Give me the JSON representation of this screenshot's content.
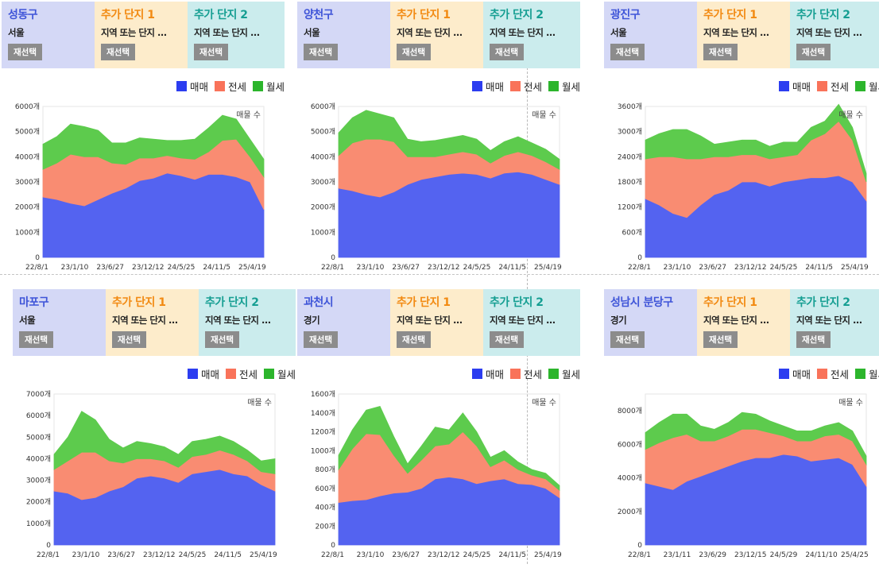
{
  "header_labels": {
    "add1": "추가 단지 1",
    "add2": "추가 단지 2",
    "add_sub": "지역 또는 단지 ...",
    "reselect": "재선택"
  },
  "legend": {
    "sale": "매매",
    "jeonse": "전세",
    "monthly": "월세"
  },
  "annotation": "매물 수",
  "colors": {
    "sale": "#5463f0",
    "jeonse": "#f98c72",
    "monthly": "#5dcb4d",
    "sale_swatch": "#2c3df0",
    "jeonse_swatch": "#f9735a",
    "monthly_swatch": "#2cb52c"
  },
  "panels": [
    {
      "region": "성동구",
      "city": "서울"
    },
    {
      "region": "양천구",
      "city": "서울"
    },
    {
      "region": "광진구",
      "city": "서울"
    },
    {
      "region": "마포구",
      "city": "서울"
    },
    {
      "region": "과천시",
      "city": "경기"
    },
    {
      "region": "성남시 분당구",
      "city": "경기"
    }
  ],
  "chart_data": [
    {
      "type": "area",
      "stacked": true,
      "annotation": "매물 수",
      "x_tick_labels": [
        "22/8/1",
        "23/1/10",
        "23/6/27",
        "23/12/12",
        "24/5/25",
        "24/11/5",
        "25/4/19"
      ],
      "y_tick_labels": [
        "0",
        "1000개",
        "2000개",
        "3000개",
        "4000개",
        "5000개",
        "6000개"
      ],
      "ylim": [
        0,
        6000
      ],
      "series": [
        {
          "name": "매매",
          "values": [
            2400,
            2300,
            2150,
            2050,
            2300,
            2550,
            2750,
            3050,
            3150,
            3350,
            3250,
            3100,
            3300,
            3300,
            3200,
            3000,
            1900
          ]
        },
        {
          "name": "전세",
          "values": [
            1100,
            1450,
            1950,
            1950,
            1700,
            1200,
            950,
            900,
            800,
            700,
            700,
            800,
            900,
            1350,
            1500,
            1000,
            1300
          ]
        },
        {
          "name": "월세",
          "values": [
            1000,
            1050,
            1200,
            1200,
            1050,
            800,
            850,
            800,
            750,
            600,
            700,
            800,
            950,
            1000,
            800,
            700,
            700
          ]
        }
      ]
    },
    {
      "type": "area",
      "stacked": true,
      "annotation": "매물 수",
      "x_tick_labels": [
        "22/8/1",
        "23/1/10",
        "23/6/27",
        "23/12/12",
        "24/5/25",
        "24/11/5",
        "25/4/19"
      ],
      "y_tick_labels": [
        "0",
        "1000개",
        "2000개",
        "3000개",
        "4000개",
        "5000개",
        "6000개"
      ],
      "ylim": [
        0,
        6000
      ],
      "series": [
        {
          "name": "매매",
          "values": [
            2750,
            2650,
            2500,
            2400,
            2600,
            2900,
            3100,
            3200,
            3300,
            3350,
            3300,
            3150,
            3350,
            3400,
            3300,
            3100,
            2900
          ]
        },
        {
          "name": "전세",
          "values": [
            1300,
            1900,
            2200,
            2300,
            2000,
            1100,
            900,
            800,
            800,
            850,
            800,
            600,
            700,
            800,
            750,
            700,
            600
          ]
        },
        {
          "name": "월세",
          "values": [
            900,
            1000,
            1150,
            1000,
            950,
            700,
            600,
            650,
            650,
            650,
            600,
            500,
            550,
            600,
            500,
            500,
            400
          ]
        }
      ]
    },
    {
      "type": "area",
      "stacked": true,
      "annotation": "매물 수",
      "x_tick_labels": [
        "22/8/1",
        "23/1/10",
        "23/6/27",
        "23/12/12",
        "24/5/25",
        "24/11/5",
        "25/4/19"
      ],
      "y_tick_labels": [
        "0",
        "600개",
        "1200개",
        "1800개",
        "2400개",
        "3000개",
        "3600개"
      ],
      "ylim": [
        0,
        3600
      ],
      "series": [
        {
          "name": "매매",
          "values": [
            1400,
            1250,
            1050,
            950,
            1250,
            1500,
            1600,
            1800,
            1800,
            1700,
            1800,
            1850,
            1900,
            1900,
            1950,
            1800,
            1350
          ]
        },
        {
          "name": "전세",
          "values": [
            950,
            1150,
            1350,
            1400,
            1100,
            900,
            800,
            650,
            650,
            650,
            600,
            600,
            900,
            1050,
            1300,
            1000,
            450
          ]
        },
        {
          "name": "월세",
          "values": [
            450,
            550,
            650,
            700,
            550,
            300,
            350,
            350,
            350,
            300,
            350,
            300,
            300,
            300,
            400,
            300,
            200
          ]
        }
      ]
    },
    {
      "type": "area",
      "stacked": true,
      "annotation": "매물 수",
      "x_tick_labels": [
        "22/8/1",
        "23/1/10",
        "23/6/27",
        "23/12/12",
        "24/5/25",
        "24/11/5",
        "25/4/19"
      ],
      "y_tick_labels": [
        "0",
        "1000개",
        "2000개",
        "3000개",
        "4000개",
        "5000개",
        "6000개",
        "7000개"
      ],
      "ylim": [
        0,
        7000
      ],
      "series": [
        {
          "name": "매매",
          "values": [
            2500,
            2400,
            2100,
            2200,
            2500,
            2700,
            3100,
            3200,
            3100,
            2900,
            3300,
            3400,
            3500,
            3300,
            3200,
            2800,
            2500
          ]
        },
        {
          "name": "전세",
          "values": [
            1000,
            1500,
            2200,
            2100,
            1400,
            1100,
            900,
            800,
            800,
            700,
            800,
            800,
            900,
            900,
            700,
            600,
            800
          ]
        },
        {
          "name": "월세",
          "values": [
            700,
            1100,
            1900,
            1500,
            1000,
            700,
            800,
            700,
            650,
            600,
            700,
            700,
            650,
            600,
            500,
            500,
            700
          ]
        }
      ]
    },
    {
      "type": "area",
      "stacked": true,
      "annotation": "매물 수",
      "x_tick_labels": [
        "22/8/1",
        "23/1/10",
        "23/6/27",
        "23/12/12",
        "24/5/25",
        "24/11/5",
        "25/4/19"
      ],
      "y_tick_labels": [
        "0",
        "200개",
        "400개",
        "600개",
        "800개",
        "1000개",
        "1200개",
        "1400개",
        "1600개"
      ],
      "ylim": [
        0,
        1600
      ],
      "series": [
        {
          "name": "매매",
          "values": [
            450,
            470,
            480,
            520,
            550,
            560,
            600,
            700,
            720,
            700,
            650,
            680,
            700,
            650,
            640,
            600,
            500
          ]
        },
        {
          "name": "전세",
          "values": [
            350,
            550,
            700,
            650,
            400,
            200,
            300,
            350,
            350,
            500,
            400,
            150,
            200,
            150,
            100,
            100,
            80
          ]
        },
        {
          "name": "월세",
          "values": [
            150,
            200,
            250,
            300,
            200,
            100,
            150,
            200,
            150,
            200,
            150,
            100,
            100,
            80,
            60,
            60,
            50
          ]
        }
      ]
    },
    {
      "type": "area",
      "stacked": true,
      "annotation": "매물 수",
      "x_tick_labels": [
        "22/8/1",
        "23/1/11",
        "23/6/29",
        "23/12/15",
        "24/5/29",
        "24/11/10",
        "25/4/25"
      ],
      "y_tick_labels": [
        "0",
        "2000개",
        "4000개",
        "6000개",
        "8000개"
      ],
      "ylim": [
        0,
        9000
      ],
      "series": [
        {
          "name": "매매",
          "values": [
            3700,
            3500,
            3300,
            3800,
            4100,
            4400,
            4700,
            5000,
            5200,
            5200,
            5400,
            5300,
            5000,
            5100,
            5200,
            4800,
            3500
          ]
        },
        {
          "name": "전세",
          "values": [
            2000,
            2600,
            3100,
            2800,
            2100,
            1800,
            1800,
            1900,
            1700,
            1500,
            1100,
            900,
            1200,
            1400,
            1400,
            1400,
            1300
          ]
        },
        {
          "name": "월세",
          "values": [
            1000,
            1200,
            1400,
            1200,
            900,
            700,
            800,
            1000,
            900,
            700,
            600,
            600,
            600,
            600,
            700,
            600,
            500
          ]
        }
      ]
    }
  ]
}
